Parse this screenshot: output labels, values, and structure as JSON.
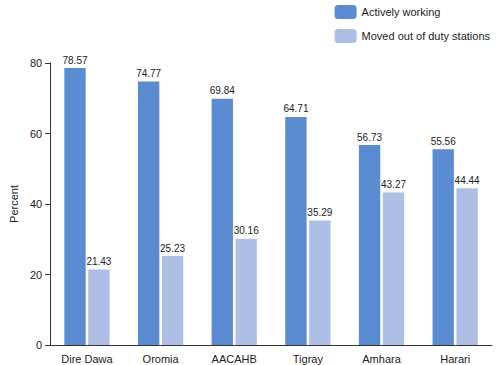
{
  "chart_data": {
    "type": "bar",
    "categories": [
      "Dire Dawa",
      "Oromia",
      "AACAHB",
      "Tigray",
      "Amhara",
      "Harari"
    ],
    "series": [
      {
        "name": "Actively working",
        "color": "#5b8bd0",
        "values": [
          78.57,
          74.77,
          69.84,
          64.71,
          56.73,
          55.56
        ]
      },
      {
        "name": "Moved out of duty stations",
        "color": "#adbfe4",
        "values": [
          21.43,
          25.23,
          30.16,
          35.29,
          43.27,
          44.44
        ]
      }
    ],
    "y_label": "Percent",
    "ylim": [
      0,
      80
    ],
    "yticks": [
      0,
      20,
      40,
      60,
      80
    ],
    "grid": false,
    "legend": "top-right",
    "data_labels": true
  }
}
